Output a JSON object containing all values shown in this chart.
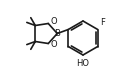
{
  "bg_color": "#ffffff",
  "line_color": "#1a1a1a",
  "line_width": 1.2,
  "text_color": "#1a1a1a",
  "label_F": "F",
  "label_HO": "HO",
  "label_B": "B",
  "label_O1": "O",
  "label_O2": "O",
  "figsize": [
    1.16,
    0.82
  ],
  "dpi": 100,
  "font_size": 6.0
}
